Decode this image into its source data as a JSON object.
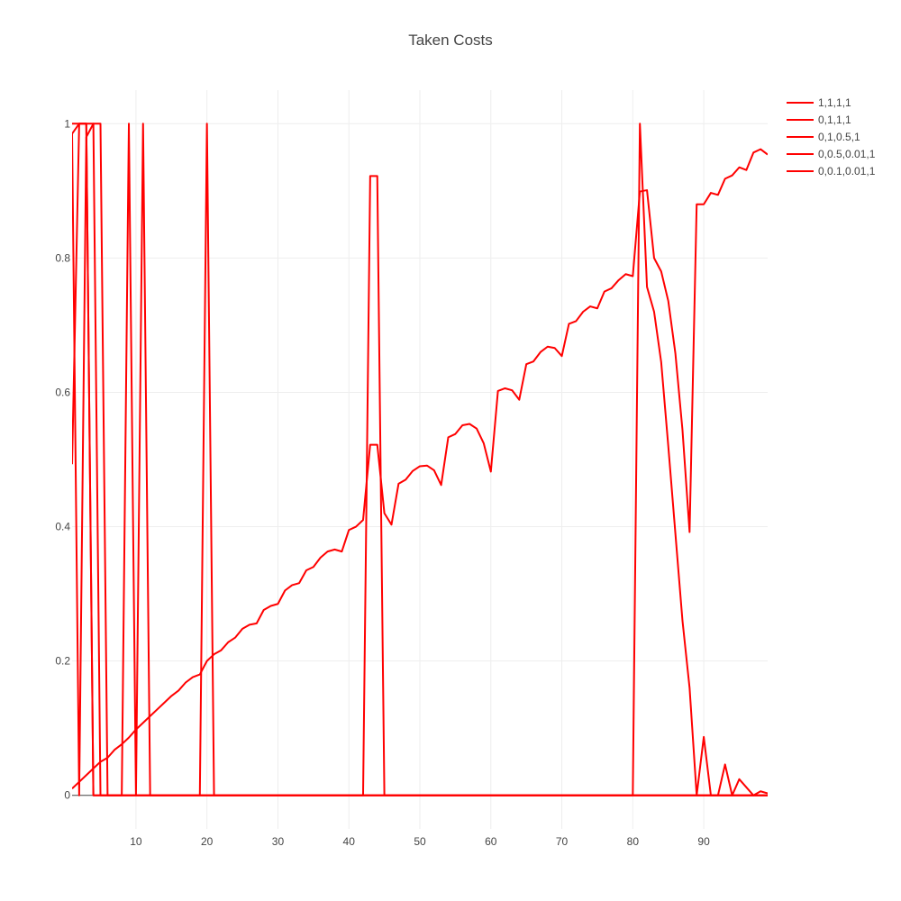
{
  "chart_data": {
    "type": "line",
    "title": "Taken Costs",
    "xlabel": "",
    "ylabel": "",
    "xlim": [
      1,
      99
    ],
    "ylim": [
      -0.05,
      1.05
    ],
    "x_ticks": [
      10,
      20,
      30,
      40,
      50,
      60,
      70,
      80,
      90
    ],
    "y_ticks": [
      0,
      0.2,
      0.4,
      0.6,
      0.8,
      1
    ],
    "y_tick_labels": [
      "0",
      "0.2",
      "0.4",
      "0.6",
      "0.8",
      "1"
    ],
    "grid": true,
    "legend_position": "top-right",
    "line_color": "#ff0000",
    "series": [
      {
        "name": "1,1,1,1",
        "x": [
          1,
          2,
          3,
          4,
          5,
          6,
          7,
          8,
          9,
          10,
          11,
          12,
          13,
          14,
          15,
          16,
          17,
          18,
          19,
          20,
          21,
          22,
          23,
          24,
          25,
          26,
          27,
          28,
          29,
          30,
          31,
          32,
          33,
          34,
          35,
          36,
          37,
          38,
          39,
          40,
          41,
          42,
          43,
          44,
          45,
          46,
          47,
          48,
          49,
          50,
          51,
          52,
          53,
          54,
          55,
          56,
          57,
          58,
          59,
          60,
          61,
          62,
          63,
          64,
          65,
          66,
          67,
          68,
          69,
          70,
          71,
          72,
          73,
          74,
          75,
          76,
          77,
          78,
          79,
          80,
          81,
          82,
          83,
          84,
          85,
          86,
          87,
          88,
          89,
          90,
          91,
          92,
          93,
          94,
          95,
          96,
          97,
          98,
          99
        ],
        "values": [
          0.01,
          0.02,
          0.03,
          0.04,
          0.05,
          0.056,
          0.068,
          0.076,
          0.086,
          0.098,
          0.108,
          0.118,
          0.128,
          0.138,
          0.148,
          0.156,
          0.168,
          0.176,
          0.18,
          0.2,
          0.21,
          0.216,
          0.228,
          0.235,
          0.248,
          0.254,
          0.256,
          0.276,
          0.282,
          0.285,
          0.305,
          0.313,
          0.316,
          0.335,
          0.34,
          0.354,
          0.363,
          0.366,
          0.363,
          0.395,
          0.4,
          0.41,
          0.522,
          0.522,
          0.42,
          0.403,
          0.464,
          0.47,
          0.483,
          0.49,
          0.491,
          0.484,
          0.462,
          0.533,
          0.538,
          0.551,
          0.553,
          0.546,
          0.524,
          0.482,
          0.602,
          0.606,
          0.603,
          0.589,
          0.642,
          0.646,
          0.66,
          0.668,
          0.666,
          0.654,
          0.702,
          0.706,
          0.72,
          0.728,
          0.725,
          0.75,
          0.755,
          0.767,
          0.776,
          0.773,
          0.899,
          0.901,
          0.8,
          0.78,
          0.736,
          0.658,
          0.544,
          0.392,
          0.88,
          0.88,
          0.897,
          0.894,
          0.918,
          0.923,
          0.935,
          0.931,
          0.957,
          0.962,
          0.954
        ]
      },
      {
        "name": "0,1,1,1",
        "x": [
          1,
          2,
          3,
          4,
          5,
          6,
          7,
          8,
          9,
          10,
          11,
          12,
          13,
          14,
          15,
          16,
          17,
          18,
          19,
          20,
          21,
          22,
          23,
          24,
          25,
          26,
          27,
          28,
          29,
          30,
          31,
          32,
          33,
          34,
          35,
          36,
          37,
          38,
          39,
          40,
          41,
          42,
          43,
          44,
          45,
          46,
          47,
          48,
          49,
          50,
          51,
          52,
          53,
          54,
          55,
          56,
          57,
          58,
          59,
          60,
          61,
          62,
          63,
          64,
          65,
          66,
          67,
          68,
          69,
          70,
          71,
          72,
          73,
          74,
          75,
          76,
          77,
          78,
          79,
          80,
          81,
          82,
          83,
          84,
          85,
          86,
          87,
          88,
          89,
          90,
          91,
          92,
          93,
          94,
          95,
          96,
          97,
          98,
          99
        ],
        "values": [
          0.493,
          1,
          1,
          1,
          0,
          0,
          0,
          0,
          0,
          0,
          0,
          0,
          0,
          0,
          0,
          0,
          0,
          0,
          0,
          0,
          0,
          0,
          0,
          0,
          0,
          0,
          0,
          0,
          0,
          0,
          0,
          0,
          0,
          0,
          0,
          0,
          0,
          0,
          0,
          0,
          0,
          0,
          0.922,
          0.922,
          0,
          0,
          0,
          0,
          0,
          0,
          0,
          0,
          0,
          0,
          0,
          0,
          0,
          0,
          0,
          0,
          0,
          0,
          0,
          0,
          0,
          0,
          0,
          0,
          0,
          0,
          0,
          0,
          0,
          0,
          0,
          0,
          0,
          0,
          0,
          0,
          0,
          0,
          0,
          0,
          0,
          0,
          0,
          0,
          0,
          0,
          0,
          0,
          0,
          0,
          0,
          0,
          0,
          0,
          0
        ]
      },
      {
        "name": "0,1,0.5,1",
        "x": [
          1,
          2,
          3,
          4,
          5,
          6,
          7,
          8,
          9,
          10,
          11,
          12,
          13,
          14,
          15,
          16,
          17,
          18,
          19,
          20,
          21,
          22,
          23,
          24,
          25,
          26,
          27,
          28,
          29,
          30,
          31,
          32,
          33,
          34,
          35,
          36,
          37,
          38,
          39,
          40,
          41,
          42,
          43,
          44,
          45,
          46,
          47,
          48,
          49,
          50,
          51,
          52,
          53,
          54,
          55,
          56,
          57,
          58,
          59,
          60,
          61,
          62,
          63,
          64,
          65,
          66,
          67,
          68,
          69,
          70,
          71,
          72,
          73,
          74,
          75,
          76,
          77,
          78,
          79,
          80,
          81,
          82,
          83,
          84,
          85,
          86,
          87,
          88,
          89,
          90,
          91,
          92,
          93,
          94,
          95,
          96,
          97,
          98,
          99
        ],
        "values": [
          1,
          1,
          1,
          0,
          0,
          0,
          0,
          0,
          1,
          0,
          1,
          0,
          0,
          0,
          0,
          0,
          0,
          0,
          0,
          1,
          0,
          0,
          0,
          0,
          0,
          0,
          0,
          0,
          0,
          0,
          0,
          0,
          0,
          0,
          0,
          0,
          0,
          0,
          0,
          0,
          0,
          0,
          0,
          0,
          0,
          0,
          0,
          0,
          0,
          0,
          0,
          0,
          0,
          0,
          0,
          0,
          0,
          0,
          0,
          0,
          0,
          0,
          0,
          0,
          0,
          0,
          0,
          0,
          0,
          0,
          0,
          0,
          0,
          0,
          0,
          0,
          0,
          0,
          0,
          0,
          1,
          0.757,
          0.72,
          0.645,
          0.52,
          0.39,
          0.26,
          0.16,
          0,
          0.087,
          0,
          0,
          0,
          0,
          0,
          0,
          0,
          0,
          0
        ]
      },
      {
        "name": "0,0.5,0.01,1",
        "x": [
          1,
          2,
          3,
          4,
          5,
          6,
          7,
          8,
          9,
          10,
          11,
          12,
          13,
          14,
          15,
          16,
          17,
          18,
          19,
          20,
          21,
          22,
          23,
          24,
          25,
          26,
          27,
          28,
          29,
          30,
          31,
          32,
          33,
          34,
          35,
          36,
          37,
          38,
          39,
          40,
          41,
          42,
          43,
          44,
          45,
          46,
          47,
          48,
          49,
          50,
          51,
          52,
          53,
          54,
          55,
          56,
          57,
          58,
          59,
          60,
          61,
          62,
          63,
          64,
          65,
          66,
          67,
          68,
          69,
          70,
          71,
          72,
          73,
          74,
          75,
          76,
          77,
          78,
          79,
          80,
          81,
          82,
          83,
          84,
          85,
          86,
          87,
          88,
          89,
          90,
          91,
          92,
          93,
          94,
          95,
          96,
          97,
          98,
          99
        ],
        "values": [
          0.985,
          1,
          1,
          0,
          0,
          0,
          0,
          0,
          0,
          0,
          0,
          0,
          0,
          0,
          0,
          0,
          0,
          0,
          0,
          0,
          0,
          0,
          0,
          0,
          0,
          0,
          0,
          0,
          0,
          0,
          0,
          0,
          0,
          0,
          0,
          0,
          0,
          0,
          0,
          0,
          0,
          0,
          0,
          0,
          0,
          0,
          0,
          0,
          0,
          0,
          0,
          0,
          0,
          0,
          0,
          0,
          0,
          0,
          0,
          0,
          0,
          0,
          0,
          0,
          0,
          0,
          0,
          0,
          0,
          0,
          0,
          0,
          0,
          0,
          0,
          0,
          0,
          0,
          0,
          0,
          0,
          0,
          0,
          0,
          0,
          0,
          0,
          0,
          0,
          0,
          0,
          0,
          0.046,
          0,
          0.024,
          0.012,
          0,
          0.006,
          0.003
        ]
      },
      {
        "name": "0,0.1,0.01,1",
        "x": [
          1,
          2,
          3,
          4,
          5,
          6,
          7,
          8,
          9,
          10,
          11,
          12,
          13,
          14,
          15,
          16,
          17,
          18,
          19,
          20,
          21,
          22,
          23,
          24,
          25,
          26,
          27,
          28,
          29,
          30,
          31,
          32,
          33,
          34,
          35,
          36,
          37,
          38,
          39,
          40,
          41,
          42,
          43,
          44,
          45,
          46,
          47,
          48,
          49,
          50,
          51,
          52,
          53,
          54,
          55,
          56,
          57,
          58,
          59,
          60,
          61,
          62,
          63,
          64,
          65,
          66,
          67,
          68,
          69,
          70,
          71,
          72,
          73,
          74,
          75,
          76,
          77,
          78,
          79,
          80,
          81,
          82,
          83,
          84,
          85,
          86,
          87,
          88,
          89,
          90,
          91,
          92,
          93,
          94,
          95,
          96,
          97,
          98,
          99
        ],
        "values": [
          0.985,
          0,
          0.98,
          1,
          1,
          0,
          0,
          0,
          0,
          0,
          0,
          0,
          0,
          0,
          0,
          0,
          0,
          0,
          0,
          0,
          0,
          0,
          0,
          0,
          0,
          0,
          0,
          0,
          0,
          0,
          0,
          0,
          0,
          0,
          0,
          0,
          0,
          0,
          0,
          0,
          0,
          0,
          0,
          0,
          0,
          0,
          0,
          0,
          0,
          0,
          0,
          0,
          0,
          0,
          0,
          0,
          0,
          0,
          0,
          0,
          0,
          0,
          0,
          0,
          0,
          0,
          0,
          0,
          0,
          0,
          0,
          0,
          0,
          0,
          0,
          0,
          0,
          0,
          0,
          0,
          0,
          0,
          0,
          0,
          0,
          0,
          0,
          0,
          0,
          0,
          0,
          0,
          0,
          0,
          0,
          0,
          0,
          0,
          0
        ]
      }
    ]
  }
}
